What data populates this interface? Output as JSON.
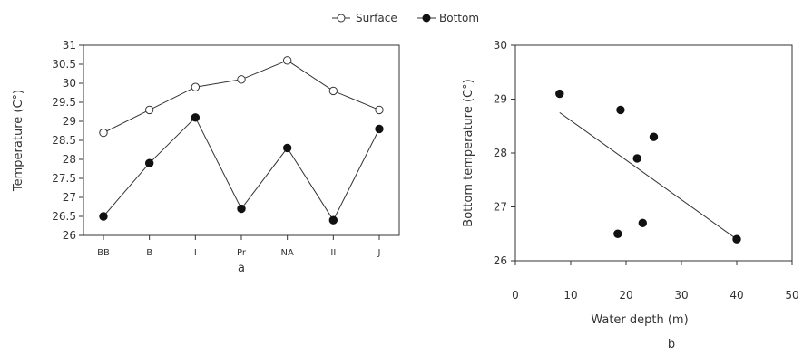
{
  "legend": {
    "surface_label": "Surface",
    "bottom_label": "Bottom"
  },
  "chart_data": [
    {
      "type": "line",
      "panel_label": "a",
      "ylabel": "Temperature (C°)",
      "xlabel": "",
      "categories": [
        "BB",
        "B",
        "I",
        "Pr",
        "NA",
        "II",
        "J"
      ],
      "ylim": [
        26,
        31
      ],
      "yticks": [
        "26",
        "26.5",
        "27",
        "27.5",
        "28",
        "28.5",
        "29",
        "29.5",
        "30",
        "30.5",
        "31"
      ],
      "series": [
        {
          "name": "Surface",
          "marker": "open-circle",
          "values": [
            28.7,
            29.3,
            29.9,
            30.1,
            30.6,
            29.8,
            29.3
          ]
        },
        {
          "name": "Bottom",
          "marker": "filled-circle",
          "values": [
            26.5,
            27.9,
            29.1,
            26.7,
            28.3,
            26.4,
            28.8
          ]
        }
      ],
      "grid": false
    },
    {
      "type": "scatter",
      "panel_label": "b",
      "xlabel": "Water depth (m)",
      "ylabel": "Bottom temperature (C°)",
      "xlim": [
        0,
        50
      ],
      "ylim": [
        26,
        30
      ],
      "xticks": [
        "0",
        "10",
        "20",
        "30",
        "40",
        "50"
      ],
      "yticks": [
        "26",
        "27",
        "28",
        "29",
        "30"
      ],
      "points": [
        {
          "x": 8,
          "y": 29.1
        },
        {
          "x": 18.5,
          "y": 26.5
        },
        {
          "x": 19,
          "y": 28.8
        },
        {
          "x": 22,
          "y": 27.9
        },
        {
          "x": 23,
          "y": 26.7
        },
        {
          "x": 25,
          "y": 28.3
        },
        {
          "x": 40,
          "y": 26.4
        }
      ],
      "trendline": {
        "x": [
          8,
          40
        ],
        "y": [
          28.75,
          26.4
        ]
      },
      "grid": false
    }
  ]
}
